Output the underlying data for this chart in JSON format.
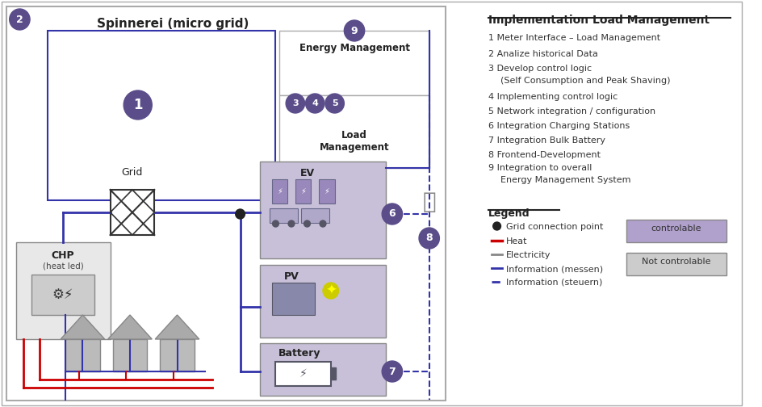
{
  "title": "Spinnerei (micro grid)",
  "fig_width": 9.44,
  "fig_height": 5.04,
  "bg_color": "#ffffff",
  "outer_border_color": "#aaaaaa",
  "purple": "#5b4d8a",
  "light_purple_box": "#c8c0d8",
  "medium_purple_box": "#b0a8c8",
  "dark_purple_circle": "#5b4d8a",
  "gray_box": "#d8d8d8",
  "red_line": "#cc0000",
  "blue_line": "#3333aa",
  "gray_line": "#888888",
  "right_panel_title": "Implementation Load Management",
  "items": [
    "1 Meter Interface – Load Management",
    "2 Analize historical Data",
    "3 Develop control logic",
    "  (Self Consumption and Peak Shaving)",
    "4 Implementing control logic",
    "5 Network integration / configuration",
    "6 Integration Charging Stations",
    "7 Integration Bulk Battery",
    "8 Frontend-Development",
    "9 Integration to overall",
    "  Energy Management System"
  ],
  "legend_title": "Legend",
  "legend_items": [
    "Grid connection point",
    "Heat",
    "Electricity",
    "Information (messen)",
    "Information (steuern)"
  ],
  "controlable_label": "controlable",
  "not_controlable_label": "Not controlable"
}
